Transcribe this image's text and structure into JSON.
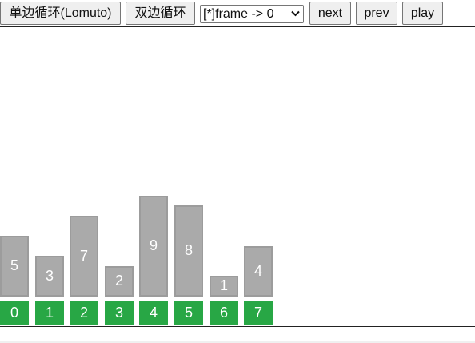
{
  "toolbar": {
    "lomuto_label": "单边循环(Lomuto)",
    "hoare_label": "双边循环",
    "frame_select_value": "[*]frame -> 0",
    "next_label": "next",
    "prev_label": "prev",
    "play_label": "play"
  },
  "chart_data": {
    "type": "bar",
    "categories": [
      "0",
      "1",
      "2",
      "3",
      "4",
      "5",
      "6",
      "7"
    ],
    "values": [
      5,
      3,
      7,
      2,
      9,
      8,
      1,
      4
    ],
    "bar_color": "#aaaaaa",
    "index_color": "#28a745"
  }
}
